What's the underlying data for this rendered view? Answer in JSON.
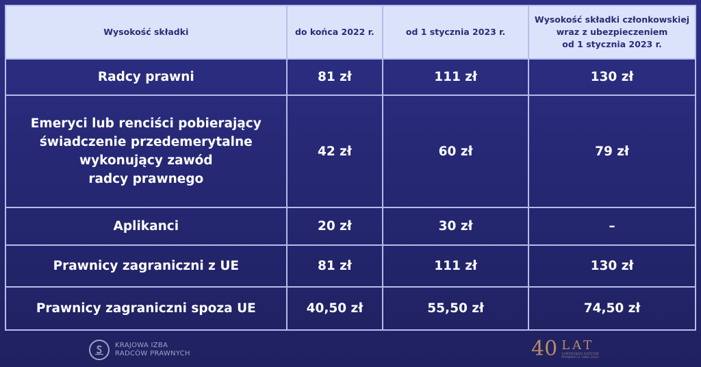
{
  "table": {
    "headers": [
      "Wysokość składki",
      "do końca 2022 r.",
      "od 1 stycznia 2023 r.",
      "Wysokość składki członkowskiej\nwraz z ubezpieczeniem\nod 1 stycznia 2023 r."
    ],
    "rows": [
      [
        "Radcy prawni",
        "81 zł",
        "111 zł",
        "130 zł"
      ],
      [
        "Emeryci lub renciści pobierający\nświadczenie przedemerytalne\nwykonujący zawód\nradcy prawnego",
        "42 zł",
        "60 zł",
        "79 zł"
      ],
      [
        "Aplikanci",
        "20 zł",
        "30 zł",
        "–"
      ],
      [
        "Prawnicy zagraniczni z UE",
        "81 zł",
        "111 zł",
        "130 zł"
      ],
      [
        "Prawnicy zagraniczni spoza UE",
        "40,50 zł",
        "55,50 zł",
        "74,50 zł"
      ]
    ]
  },
  "footer": {
    "left_logo": {
      "line1": "KRAJOWA IZBA",
      "line2": "RADCÓW PRAWNYCH"
    },
    "right_logo": {
      "number": "40",
      "word": "LAT",
      "subtitle": "SAMORZĄDU RADCÓW\nPRAWNYCH 1982-2022"
    }
  },
  "colors": {
    "background": "#2a2c7e",
    "header_bg": "#dbe3fb",
    "header_text": "#2a2d74",
    "grid": "#b6bde8",
    "accent_gold": "#b98a68"
  }
}
